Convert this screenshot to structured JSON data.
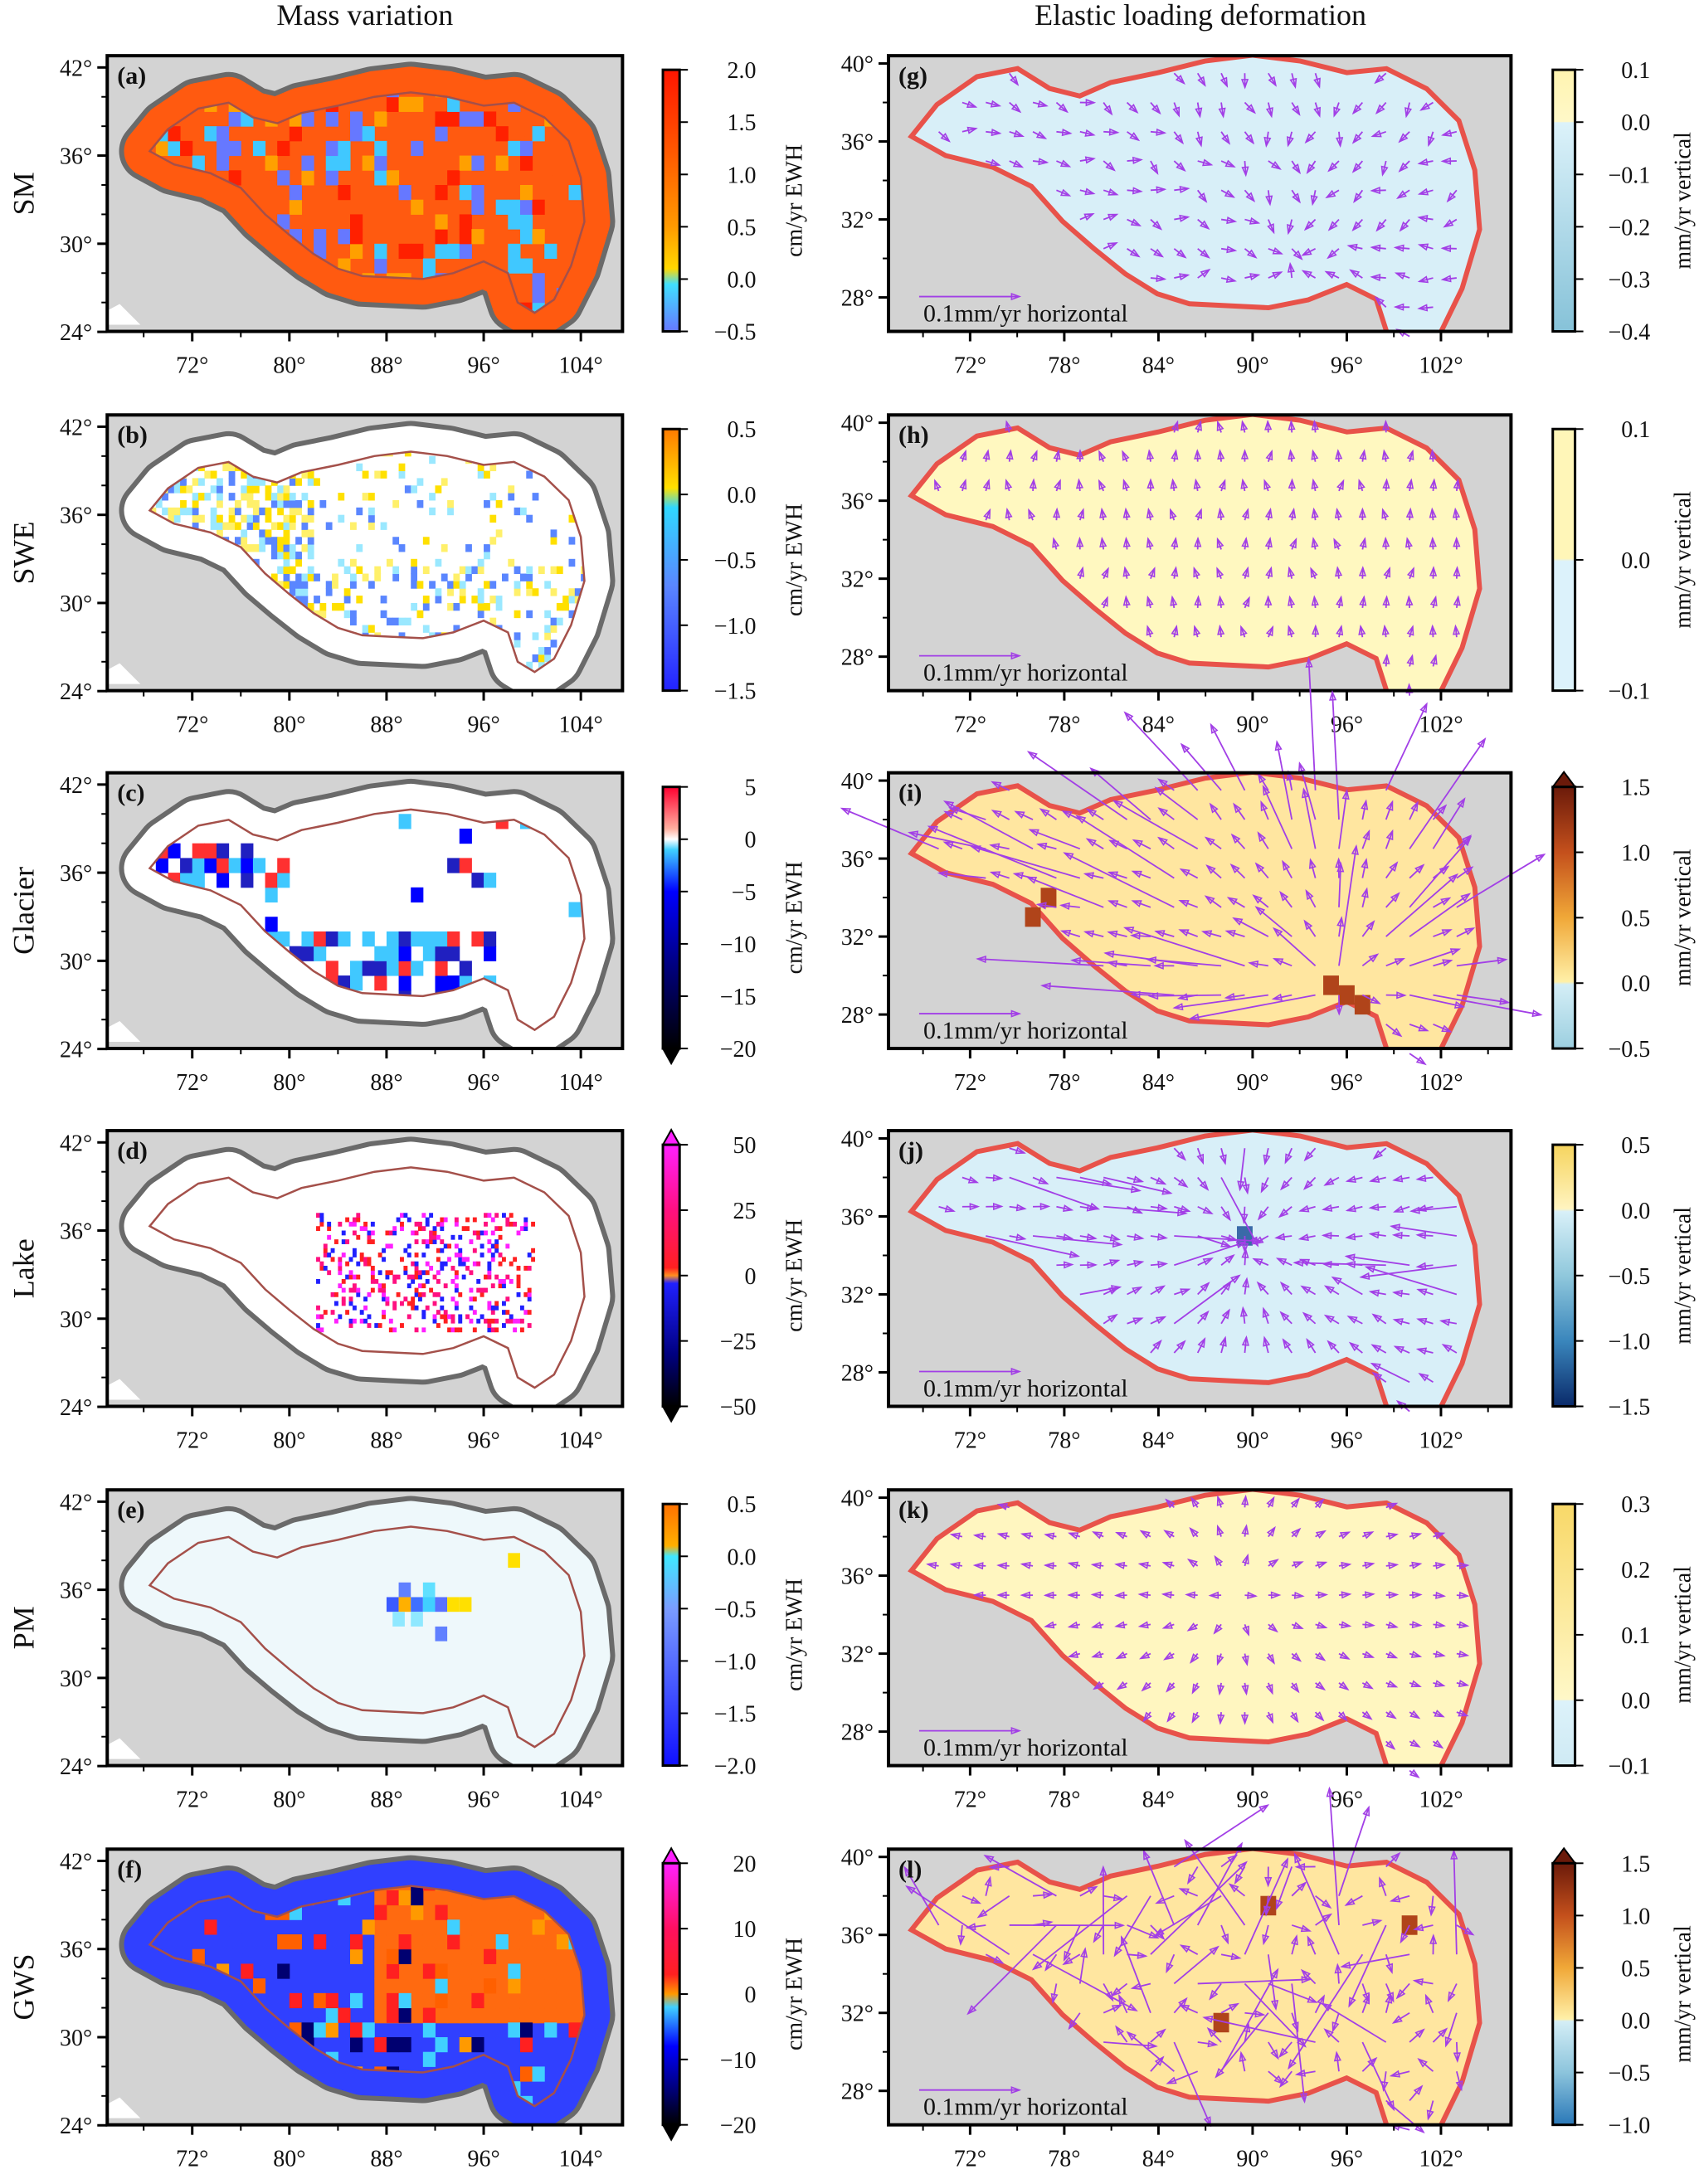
{
  "titles": {
    "left": "Mass variation",
    "right": "Elastic loading deformation"
  },
  "axes": {
    "left": {
      "x_ticks": [
        "72°",
        "80°",
        "88°",
        "96°",
        "104°"
      ],
      "x_values": [
        72,
        80,
        88,
        96,
        104
      ],
      "y_ticks": [
        "42°",
        "36°",
        "30°",
        "24°"
      ],
      "y_values": [
        42,
        36,
        30,
        24
      ]
    },
    "right": {
      "x_ticks": [
        "72°",
        "78°",
        "84°",
        "90°",
        "96°",
        "102°"
      ],
      "x_values": [
        72,
        78,
        84,
        90,
        96,
        102
      ],
      "y_ticks": [
        "40°",
        "36°",
        "32°",
        "28°"
      ],
      "y_values": [
        40,
        36,
        32,
        28
      ]
    }
  },
  "colors": {
    "ocean_gray": "#d3d3d3",
    "buffer_gray": "#6a6a6a",
    "outline_brown": "#a4504a",
    "edge_red": "#e8524a",
    "arrow_purple": "#a23fe6"
  },
  "left_panels": [
    {
      "letter": "(a)",
      "row_label": "SM",
      "cbar": {
        "label": "cm/yr  EWH",
        "ticks": [
          "2.0",
          "1.5",
          "1.0",
          "0.5",
          "0.0",
          "−0.5"
        ],
        "values": [
          2.0,
          1.5,
          1.0,
          0.5,
          0.0,
          -0.5
        ],
        "extend": "none",
        "stops": [
          [
            2.0,
            "#ff1500"
          ],
          [
            1.2,
            "#ff5a00"
          ],
          [
            0.5,
            "#ff9a00"
          ],
          [
            0.1,
            "#ffd800"
          ],
          [
            -0.05,
            "#40e0ff"
          ],
          [
            -0.5,
            "#6678ff"
          ]
        ]
      }
    },
    {
      "letter": "(b)",
      "row_label": "SWE",
      "cbar": {
        "label": "cm/yr  EWH",
        "ticks": [
          "0.5",
          "0.0",
          "−0.5",
          "−1.0",
          "−1.5"
        ],
        "values": [
          0.5,
          0.0,
          -0.5,
          -1.0,
          -1.5
        ],
        "extend": "none",
        "stops": [
          [
            0.5,
            "#ff7a00"
          ],
          [
            0.05,
            "#ffe000"
          ],
          [
            -0.1,
            "#30d8ff"
          ],
          [
            -0.7,
            "#5a86ff"
          ],
          [
            -1.5,
            "#2222ff"
          ]
        ]
      }
    },
    {
      "letter": "(c)",
      "row_label": "Glacier",
      "cbar": {
        "label": "cm/yr  EWH",
        "ticks": [
          "5",
          "0",
          "−5",
          "−10",
          "−15",
          "−20"
        ],
        "values": [
          5,
          0,
          -5,
          -10,
          -15,
          -20
        ],
        "extend": "min",
        "stops": [
          [
            5,
            "#ff0030"
          ],
          [
            1,
            "#ffb0a0"
          ],
          [
            0,
            "#ffffff"
          ],
          [
            -1,
            "#40d0ff"
          ],
          [
            -5,
            "#0000ff"
          ],
          [
            -12,
            "#000080"
          ],
          [
            -20,
            "#000000"
          ]
        ]
      }
    },
    {
      "letter": "(d)",
      "row_label": "Lake",
      "cbar": {
        "label": "cm/yr  EWH",
        "ticks": [
          "50",
          "25",
          "0",
          "−25",
          "−50"
        ],
        "values": [
          50,
          25,
          0,
          -25,
          -50
        ],
        "extend": "both",
        "stops": [
          [
            50,
            "#ff20ff"
          ],
          [
            25,
            "#ff1080"
          ],
          [
            3,
            "#ff2020"
          ],
          [
            0,
            "#ff9020"
          ],
          [
            -3,
            "#2020ff"
          ],
          [
            -30,
            "#000080"
          ],
          [
            -50,
            "#000000"
          ]
        ]
      }
    },
    {
      "letter": "(e)",
      "row_label": "PM",
      "cbar": {
        "label": "cm/yr  EWH",
        "ticks": [
          "0.5",
          "0.0",
          "−0.5",
          "−1.0",
          "−1.5",
          "−2.0"
        ],
        "values": [
          0.5,
          0.0,
          -0.5,
          -1.0,
          -1.5,
          -2.0
        ],
        "extend": "none",
        "stops": [
          [
            0.5,
            "#ff7000"
          ],
          [
            0.1,
            "#ffb000"
          ],
          [
            0.0,
            "#40e8ff"
          ],
          [
            -0.5,
            "#7a9cff"
          ],
          [
            -2.0,
            "#1010ff"
          ]
        ]
      }
    },
    {
      "letter": "(f)",
      "row_label": "GWS",
      "cbar": {
        "label": "cm/yr  EWH",
        "ticks": [
          "20",
          "10",
          "0",
          "−10",
          "−20"
        ],
        "values": [
          20,
          10,
          0,
          -10,
          -20
        ],
        "extend": "both",
        "stops": [
          [
            20,
            "#ff20ff"
          ],
          [
            10,
            "#ff1060"
          ],
          [
            3,
            "#ff2020"
          ],
          [
            0,
            "#ff9a00"
          ],
          [
            -2,
            "#40d0ff"
          ],
          [
            -8,
            "#0000ff"
          ],
          [
            -15,
            "#000070"
          ],
          [
            -20,
            "#000000"
          ]
        ]
      }
    }
  ],
  "right_panels": [
    {
      "letter": "(g)",
      "scale_label": "0.1mm/yr horizontal",
      "cbar": {
        "label": "mm/yr  vertical",
        "ticks": [
          "0.1",
          "0.0",
          "−0.1",
          "−0.2",
          "−0.3",
          "−0.4"
        ],
        "values": [
          0.1,
          0.0,
          -0.1,
          -0.2,
          -0.3,
          -0.4
        ],
        "extend": "none",
        "stops": [
          [
            0.1,
            "#fff4b0"
          ],
          [
            0.001,
            "#fff8c8"
          ],
          [
            -0.001,
            "#dcf2fa"
          ],
          [
            -0.4,
            "#86c2d8"
          ]
        ]
      }
    },
    {
      "letter": "(h)",
      "scale_label": "0.1mm/yr horizontal",
      "cbar": {
        "label": "mm/yr  vertical",
        "ticks": [
          "0.1",
          "0.0",
          "−0.1"
        ],
        "values": [
          0.1,
          0.0,
          -0.1
        ],
        "extend": "none",
        "stops": [
          [
            0.1,
            "#fff6b8"
          ],
          [
            0.001,
            "#fff6b8"
          ],
          [
            -0.001,
            "#dcf2fb"
          ],
          [
            -0.1,
            "#dcf2fb"
          ]
        ]
      }
    },
    {
      "letter": "(i)",
      "scale_label": "0.1mm/yr horizontal",
      "cbar": {
        "label": "mm/yr  vertical",
        "ticks": [
          "1.5",
          "1.0",
          "0.5",
          "0.0",
          "−0.5"
        ],
        "values": [
          1.5,
          1.0,
          0.5,
          0.0,
          -0.5
        ],
        "extend": "max",
        "stops": [
          [
            1.5,
            "#6b1a0a"
          ],
          [
            1.0,
            "#c4501c"
          ],
          [
            0.5,
            "#f0a838"
          ],
          [
            0.01,
            "#fff0a8"
          ],
          [
            -0.01,
            "#d4eef6"
          ],
          [
            -0.5,
            "#9ccfe0"
          ]
        ]
      }
    },
    {
      "letter": "(j)",
      "scale_label": "0.1mm/yr horizontal",
      "cbar": {
        "label": "mm/yr  vertical",
        "ticks": [
          "0.5",
          "0.0",
          "−0.5",
          "−1.0",
          "−1.5"
        ],
        "values": [
          0.5,
          0.0,
          -0.5,
          -1.0,
          -1.5
        ],
        "extend": "none",
        "stops": [
          [
            0.5,
            "#f6d45e"
          ],
          [
            0.01,
            "#fff4c0"
          ],
          [
            -0.01,
            "#d8f0f8"
          ],
          [
            -0.5,
            "#90c8dc"
          ],
          [
            -1.0,
            "#3a86bc"
          ],
          [
            -1.5,
            "#0a2a6a"
          ]
        ]
      }
    },
    {
      "letter": "(k)",
      "scale_label": "0.1mm/yr horizontal",
      "cbar": {
        "label": "mm/yr  vertical",
        "ticks": [
          "0.3",
          "0.2",
          "0.1",
          "0.0",
          "−0.1"
        ],
        "values": [
          0.3,
          0.2,
          0.1,
          0.0,
          -0.1
        ],
        "extend": "none",
        "stops": [
          [
            0.3,
            "#f8d868"
          ],
          [
            0.001,
            "#fff8c8"
          ],
          [
            -0.001,
            "#dcf2fa"
          ],
          [
            -0.1,
            "#cfeaf4"
          ]
        ]
      }
    },
    {
      "letter": "(l)",
      "scale_label": "0.1mm/yr horizontal",
      "cbar": {
        "label": "mm/yr  vertical",
        "ticks": [
          "1.5",
          "1.0",
          "0.5",
          "0.0",
          "−0.5",
          "−1.0"
        ],
        "values": [
          1.5,
          1.0,
          0.5,
          0.0,
          -0.5,
          -1.0
        ],
        "extend": "max",
        "stops": [
          [
            1.5,
            "#6b1a0a"
          ],
          [
            1.0,
            "#c4501c"
          ],
          [
            0.5,
            "#f0a838"
          ],
          [
            0.01,
            "#fff0a8"
          ],
          [
            -0.01,
            "#d4eef6"
          ],
          [
            -0.5,
            "#8cc4dc"
          ],
          [
            -1.0,
            "#2a78b8"
          ]
        ]
      }
    }
  ]
}
